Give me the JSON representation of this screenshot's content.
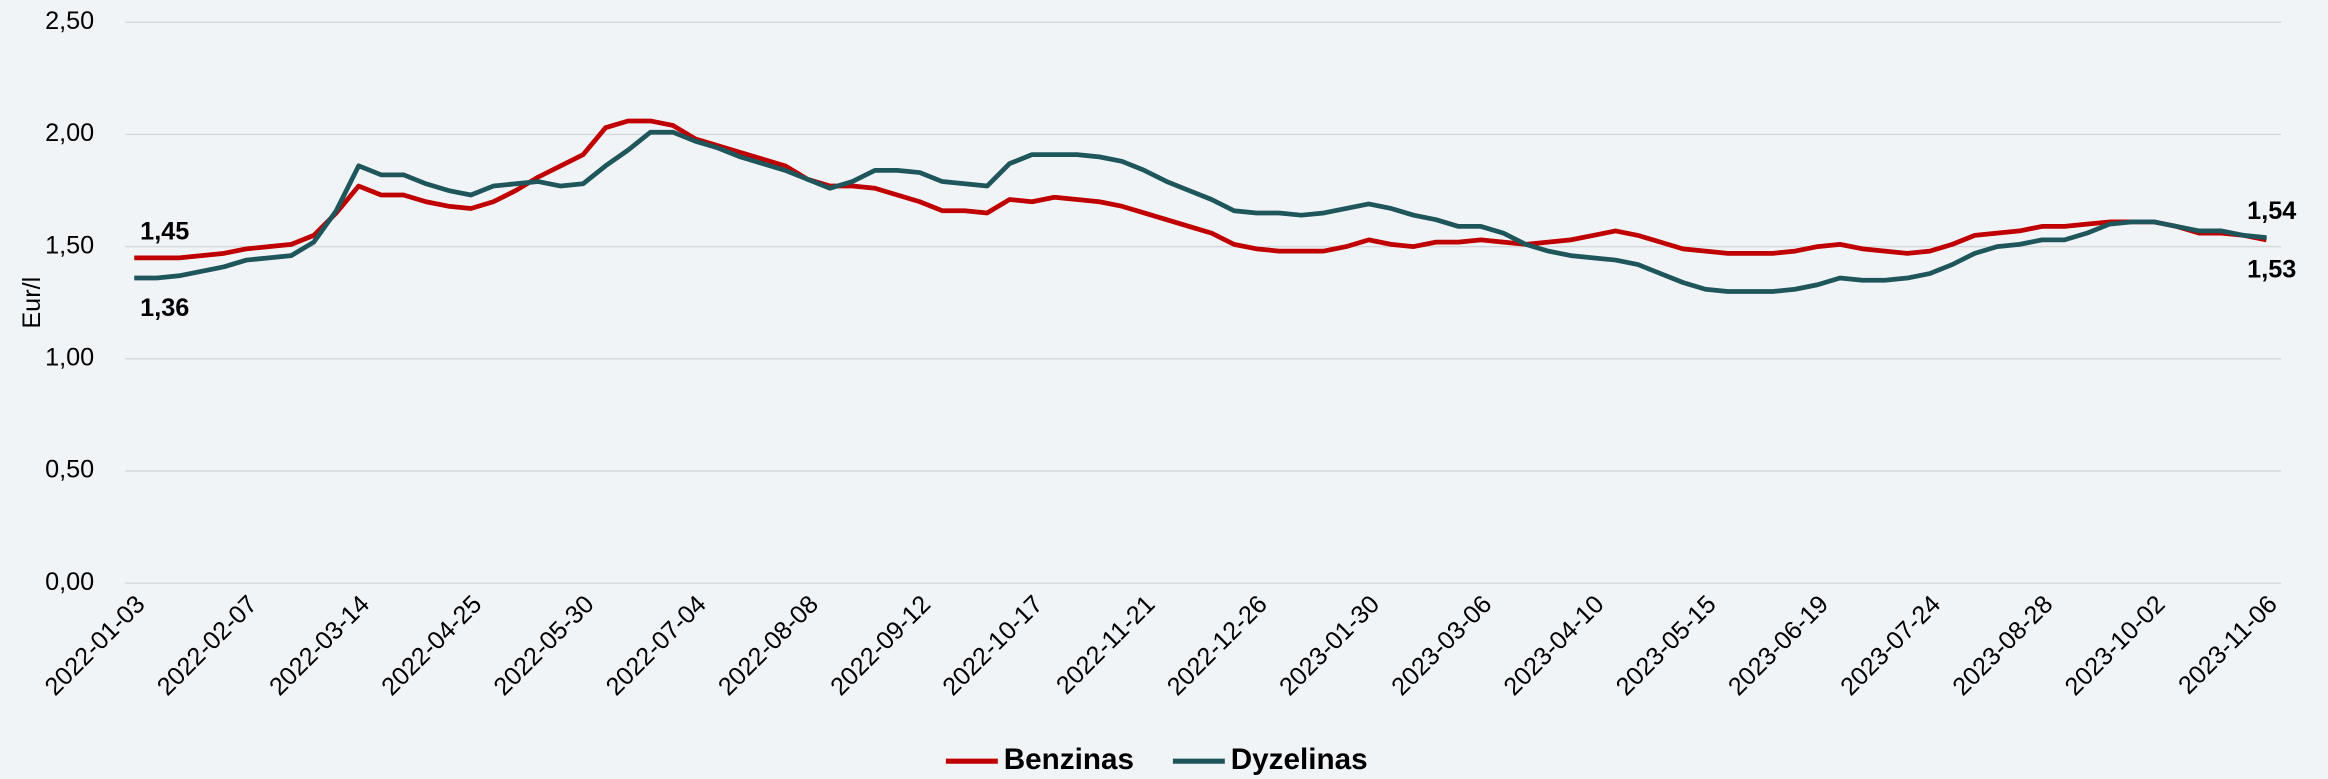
{
  "chart_data": {
    "type": "line",
    "y_label": "Eur/l",
    "categories": [
      "2022-01-03",
      null,
      null,
      null,
      null,
      "2022-02-07",
      null,
      null,
      null,
      null,
      "2022-03-14",
      null,
      null,
      null,
      null,
      "2022-04-25",
      null,
      null,
      null,
      null,
      "2022-05-30",
      null,
      null,
      null,
      null,
      "2022-07-04",
      null,
      null,
      null,
      null,
      "2022-08-08",
      null,
      null,
      null,
      null,
      "2022-09-12",
      null,
      null,
      null,
      null,
      "2022-10-17",
      null,
      null,
      null,
      null,
      "2022-11-21",
      null,
      null,
      null,
      null,
      "2022-12-26",
      null,
      null,
      null,
      null,
      "2023-01-30",
      null,
      null,
      null,
      null,
      "2023-03-06",
      null,
      null,
      null,
      null,
      "2023-04-10",
      null,
      null,
      null,
      null,
      "2023-05-15",
      null,
      null,
      null,
      null,
      "2023-06-19",
      null,
      null,
      null,
      null,
      "2023-07-24",
      null,
      null,
      null,
      null,
      "2023-08-28",
      null,
      null,
      null,
      null,
      "2023-10-02",
      null,
      null,
      null,
      null,
      "2023-11-06"
    ],
    "series": [
      {
        "name": "Benzinas",
        "color": "#c00000",
        "values": [
          1.45,
          1.45,
          1.45,
          1.46,
          1.47,
          1.49,
          1.5,
          1.51,
          1.55,
          1.65,
          1.77,
          1.73,
          1.73,
          1.7,
          1.68,
          1.67,
          1.7,
          1.75,
          1.81,
          1.86,
          1.91,
          2.03,
          2.06,
          2.06,
          2.04,
          1.98,
          1.95,
          1.92,
          1.89,
          1.86,
          1.8,
          1.77,
          1.77,
          1.76,
          1.73,
          1.7,
          1.66,
          1.66,
          1.65,
          1.71,
          1.7,
          1.72,
          1.71,
          1.7,
          1.68,
          1.65,
          1.62,
          1.59,
          1.56,
          1.51,
          1.49,
          1.48,
          1.48,
          1.48,
          1.5,
          1.53,
          1.51,
          1.5,
          1.52,
          1.52,
          1.53,
          1.52,
          1.51,
          1.52,
          1.53,
          1.55,
          1.57,
          1.55,
          1.52,
          1.49,
          1.48,
          1.47,
          1.47,
          1.47,
          1.48,
          1.5,
          1.51,
          1.49,
          1.48,
          1.47,
          1.48,
          1.51,
          1.55,
          1.56,
          1.57,
          1.59,
          1.59,
          1.6,
          1.61,
          1.61,
          1.61,
          1.59,
          1.56,
          1.56,
          1.55,
          1.53
        ],
        "value_labels": [
          "1,45",
          null,
          null,
          null,
          null,
          null,
          null,
          null,
          null,
          null,
          null,
          null,
          null,
          null,
          null,
          null,
          null,
          null,
          null,
          null,
          null,
          null,
          null,
          null,
          null,
          null,
          null,
          null,
          null,
          null,
          null,
          null,
          null,
          null,
          null,
          null,
          null,
          null,
          null,
          null,
          null,
          null,
          null,
          null,
          null,
          null,
          null,
          null,
          null,
          null,
          null,
          null,
          null,
          null,
          null,
          null,
          null,
          null,
          null,
          null,
          null,
          null,
          null,
          null,
          null,
          null,
          null,
          null,
          null,
          null,
          null,
          null,
          null,
          null,
          null,
          null,
          null,
          null,
          null,
          null,
          null,
          null,
          null,
          null,
          null,
          null,
          null,
          null,
          null,
          null,
          null,
          null,
          null,
          null,
          null,
          "1,53"
        ]
      },
      {
        "name": "Dyzelinas",
        "color": "#1f565b",
        "values": [
          1.36,
          1.36,
          1.37,
          1.39,
          1.41,
          1.44,
          1.45,
          1.46,
          1.52,
          1.66,
          1.86,
          1.82,
          1.82,
          1.78,
          1.75,
          1.73,
          1.77,
          1.78,
          1.79,
          1.77,
          1.78,
          1.86,
          1.93,
          2.01,
          2.01,
          1.97,
          1.94,
          1.9,
          1.87,
          1.84,
          1.8,
          1.76,
          1.79,
          1.84,
          1.84,
          1.83,
          1.79,
          1.78,
          1.77,
          1.87,
          1.91,
          1.91,
          1.91,
          1.9,
          1.88,
          1.84,
          1.79,
          1.75,
          1.71,
          1.66,
          1.65,
          1.65,
          1.64,
          1.65,
          1.67,
          1.69,
          1.67,
          1.64,
          1.62,
          1.59,
          1.59,
          1.56,
          1.51,
          1.48,
          1.46,
          1.45,
          1.44,
          1.42,
          1.38,
          1.34,
          1.31,
          1.3,
          1.3,
          1.3,
          1.31,
          1.33,
          1.36,
          1.35,
          1.35,
          1.36,
          1.38,
          1.42,
          1.47,
          1.5,
          1.51,
          1.53,
          1.53,
          1.56,
          1.6,
          1.61,
          1.61,
          1.59,
          1.57,
          1.57,
          1.55,
          1.54
        ],
        "value_labels": [
          "1,36",
          null,
          null,
          null,
          null,
          null,
          null,
          null,
          null,
          null,
          null,
          null,
          null,
          null,
          null,
          null,
          null,
          null,
          null,
          null,
          null,
          null,
          null,
          null,
          null,
          null,
          null,
          null,
          null,
          null,
          null,
          null,
          null,
          null,
          null,
          null,
          null,
          null,
          null,
          null,
          null,
          null,
          null,
          null,
          null,
          null,
          null,
          null,
          null,
          null,
          null,
          null,
          null,
          null,
          null,
          null,
          null,
          null,
          null,
          null,
          null,
          null,
          null,
          null,
          null,
          null,
          null,
          null,
          null,
          null,
          null,
          null,
          null,
          null,
          null,
          null,
          null,
          null,
          null,
          null,
          null,
          null,
          null,
          null,
          null,
          null,
          null,
          null,
          null,
          null,
          null,
          null,
          null,
          null,
          null,
          "1,54"
        ]
      }
    ],
    "ylim": [
      0,
      2.5
    ],
    "yticks": [
      {
        "value": 0,
        "label": "0,00"
      },
      {
        "value": 0.5,
        "label": "0,50"
      },
      {
        "value": 1,
        "label": "1,00"
      },
      {
        "value": 1.5,
        "label": "1,50"
      },
      {
        "value": 2,
        "label": "2,00"
      },
      {
        "value": 2.5,
        "label": "2,50"
      }
    ],
    "grid": true,
    "legend": "bottom"
  }
}
